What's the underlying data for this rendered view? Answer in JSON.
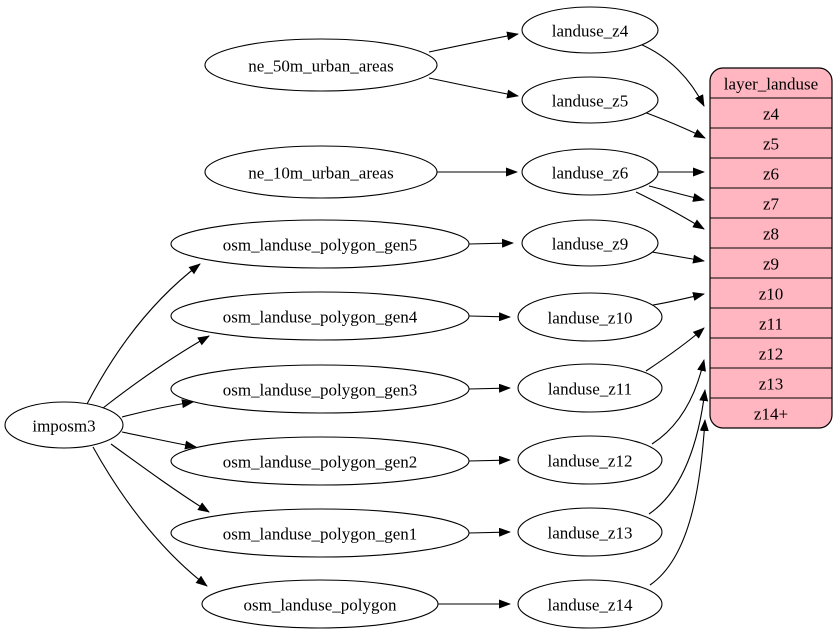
{
  "diagram": {
    "type": "dependency-graph",
    "background": "#ffffff",
    "colors": {
      "node_fill": "#ffffff",
      "node_stroke": "#000000",
      "edge": "#000000",
      "table_fill": "#ffb6c1",
      "text": "#000000"
    },
    "nodes": [
      {
        "id": "imposm3",
        "label": "imposm3"
      },
      {
        "id": "ne_50m_urban_areas",
        "label": "ne_50m_urban_areas"
      },
      {
        "id": "ne_10m_urban_areas",
        "label": "ne_10m_urban_areas"
      },
      {
        "id": "osm_landuse_polygon_gen5",
        "label": "osm_landuse_polygon_gen5"
      },
      {
        "id": "osm_landuse_polygon_gen4",
        "label": "osm_landuse_polygon_gen4"
      },
      {
        "id": "osm_landuse_polygon_gen3",
        "label": "osm_landuse_polygon_gen3"
      },
      {
        "id": "osm_landuse_polygon_gen2",
        "label": "osm_landuse_polygon_gen2"
      },
      {
        "id": "osm_landuse_polygon_gen1",
        "label": "osm_landuse_polygon_gen1"
      },
      {
        "id": "osm_landuse_polygon",
        "label": "osm_landuse_polygon"
      },
      {
        "id": "landuse_z4",
        "label": "landuse_z4"
      },
      {
        "id": "landuse_z5",
        "label": "landuse_z5"
      },
      {
        "id": "landuse_z6",
        "label": "landuse_z6"
      },
      {
        "id": "landuse_z9",
        "label": "landuse_z9"
      },
      {
        "id": "landuse_z10",
        "label": "landuse_z10"
      },
      {
        "id": "landuse_z11",
        "label": "landuse_z11"
      },
      {
        "id": "landuse_z12",
        "label": "landuse_z12"
      },
      {
        "id": "landuse_z13",
        "label": "landuse_z13"
      },
      {
        "id": "landuse_z14",
        "label": "landuse_z14"
      }
    ],
    "table": {
      "id": "layer_landuse",
      "title": "layer_landuse",
      "rows": [
        "z4",
        "z5",
        "z6",
        "z7",
        "z8",
        "z9",
        "z10",
        "z11",
        "z12",
        "z13",
        "z14+"
      ]
    },
    "edges": [
      {
        "from": "ne_50m_urban_areas",
        "to": "landuse_z4"
      },
      {
        "from": "ne_50m_urban_areas",
        "to": "landuse_z5"
      },
      {
        "from": "ne_10m_urban_areas",
        "to": "landuse_z6"
      },
      {
        "from": "imposm3",
        "to": "osm_landuse_polygon_gen5"
      },
      {
        "from": "imposm3",
        "to": "osm_landuse_polygon_gen4"
      },
      {
        "from": "imposm3",
        "to": "osm_landuse_polygon_gen3"
      },
      {
        "from": "imposm3",
        "to": "osm_landuse_polygon_gen2"
      },
      {
        "from": "imposm3",
        "to": "osm_landuse_polygon_gen1"
      },
      {
        "from": "imposm3",
        "to": "osm_landuse_polygon"
      },
      {
        "from": "osm_landuse_polygon_gen5",
        "to": "landuse_z9"
      },
      {
        "from": "osm_landuse_polygon_gen4",
        "to": "landuse_z10"
      },
      {
        "from": "osm_landuse_polygon_gen3",
        "to": "landuse_z11"
      },
      {
        "from": "osm_landuse_polygon_gen2",
        "to": "landuse_z12"
      },
      {
        "from": "osm_landuse_polygon_gen1",
        "to": "landuse_z13"
      },
      {
        "from": "osm_landuse_polygon",
        "to": "landuse_z14"
      },
      {
        "from": "landuse_z4",
        "to": "layer_landuse.z4"
      },
      {
        "from": "landuse_z5",
        "to": "layer_landuse.z5"
      },
      {
        "from": "landuse_z6",
        "to": "layer_landuse.z6"
      },
      {
        "from": "landuse_z6",
        "to": "layer_landuse.z7"
      },
      {
        "from": "landuse_z6",
        "to": "layer_landuse.z8"
      },
      {
        "from": "landuse_z9",
        "to": "layer_landuse.z9"
      },
      {
        "from": "landuse_z10",
        "to": "layer_landuse.z10"
      },
      {
        "from": "landuse_z11",
        "to": "layer_landuse.z11"
      },
      {
        "from": "landuse_z12",
        "to": "layer_landuse.z12"
      },
      {
        "from": "landuse_z13",
        "to": "layer_landuse.z13"
      },
      {
        "from": "landuse_z14",
        "to": "layer_landuse.z14+"
      }
    ]
  }
}
